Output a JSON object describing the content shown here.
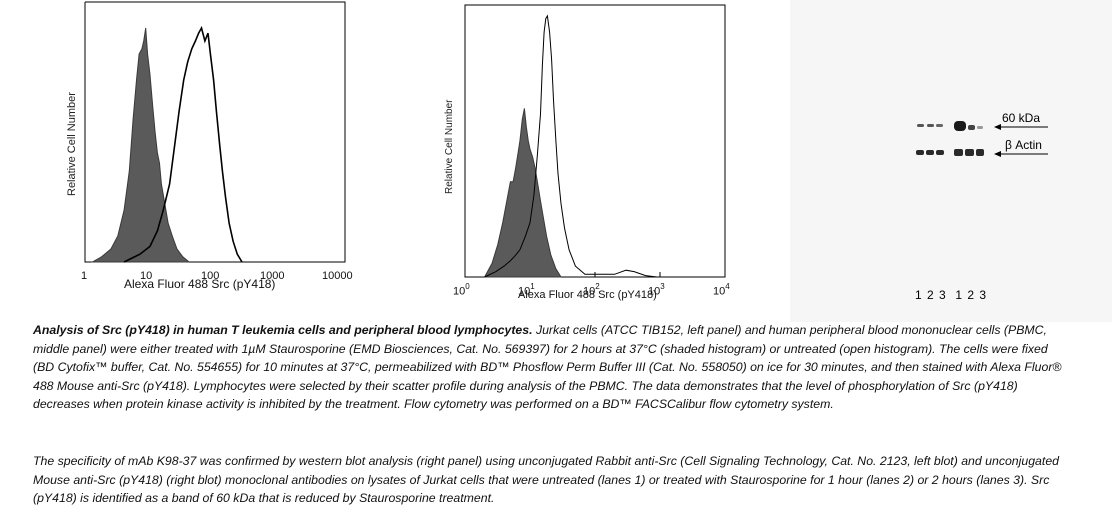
{
  "panels": [
    {
      "id": "jurkat",
      "ylabel": "Relative Cell Number",
      "xlabel": "Alexa Fluor 488 Src (pY418)",
      "xticks": [
        "1",
        "10",
        "100",
        "1000",
        "10000"
      ],
      "xscale": "log",
      "xlim": [
        1,
        10000
      ],
      "series": [
        {
          "style": "shaded",
          "points": [
            [
              1.3,
              0
            ],
            [
              1.8,
              0.02
            ],
            [
              2.5,
              0.05
            ],
            [
              3.2,
              0.1
            ],
            [
              4.0,
              0.2
            ],
            [
              4.8,
              0.35
            ],
            [
              5.5,
              0.55
            ],
            [
              6.2,
              0.7
            ],
            [
              6.8,
              0.8
            ],
            [
              7.5,
              0.82
            ],
            [
              8.0,
              0.85
            ],
            [
              8.6,
              0.9
            ],
            [
              9.2,
              0.8
            ],
            [
              10,
              0.72
            ],
            [
              11,
              0.6
            ],
            [
              12,
              0.5
            ],
            [
              13,
              0.42
            ],
            [
              14,
              0.38
            ],
            [
              15,
              0.3
            ],
            [
              17,
              0.22
            ],
            [
              19,
              0.15
            ],
            [
              22,
              0.1
            ],
            [
              26,
              0.05
            ],
            [
              32,
              0.02
            ],
            [
              40,
              0
            ]
          ]
        },
        {
          "style": "open",
          "points": [
            [
              4,
              0
            ],
            [
              7,
              0.03
            ],
            [
              10,
              0.06
            ],
            [
              13,
              0.12
            ],
            [
              16,
              0.2
            ],
            [
              20,
              0.3
            ],
            [
              24,
              0.45
            ],
            [
              28,
              0.58
            ],
            [
              33,
              0.7
            ],
            [
              38,
              0.77
            ],
            [
              44,
              0.82
            ],
            [
              50,
              0.85
            ],
            [
              56,
              0.88
            ],
            [
              62,
              0.9
            ],
            [
              70,
              0.85
            ],
            [
              78,
              0.88
            ],
            [
              85,
              0.8
            ],
            [
              95,
              0.7
            ],
            [
              105,
              0.58
            ],
            [
              118,
              0.45
            ],
            [
              130,
              0.35
            ],
            [
              145,
              0.25
            ],
            [
              165,
              0.15
            ],
            [
              190,
              0.08
            ],
            [
              220,
              0.03
            ],
            [
              260,
              0
            ]
          ]
        }
      ]
    },
    {
      "id": "pbmc",
      "ylabel": "Relative Cell Number",
      "xlabel": "Alexa Fluor 488 Src (pY418)",
      "xticks": [
        "10",
        "10",
        "10",
        "10",
        "10"
      ],
      "xtick_exps": [
        "0",
        "1",
        "2",
        "3",
        "4"
      ],
      "xscale": "log",
      "xlim": [
        1,
        10000
      ],
      "series": [
        {
          "style": "shaded",
          "points": [
            [
              2.0,
              0
            ],
            [
              2.6,
              0.05
            ],
            [
              3.2,
              0.12
            ],
            [
              3.8,
              0.2
            ],
            [
              4.4,
              0.28
            ],
            [
              5.0,
              0.35
            ],
            [
              5.5,
              0.35
            ],
            [
              6.0,
              0.4
            ],
            [
              6.5,
              0.45
            ],
            [
              7.0,
              0.5
            ],
            [
              7.6,
              0.58
            ],
            [
              8.2,
              0.62
            ],
            [
              8.8,
              0.55
            ],
            [
              9.4,
              0.5
            ],
            [
              10,
              0.47
            ],
            [
              11,
              0.44
            ],
            [
              12,
              0.4
            ],
            [
              13,
              0.35
            ],
            [
              14.5,
              0.28
            ],
            [
              16,
              0.22
            ],
            [
              18,
              0.15
            ],
            [
              21,
              0.08
            ],
            [
              25,
              0.03
            ],
            [
              30,
              0
            ]
          ]
        },
        {
          "style": "open",
          "points": [
            [
              2,
              0
            ],
            [
              3,
              0.02
            ],
            [
              4,
              0.04
            ],
            [
              5,
              0.06
            ],
            [
              6,
              0.08
            ],
            [
              7,
              0.1
            ],
            [
              8.5,
              0.15
            ],
            [
              10,
              0.2
            ],
            [
              11.5,
              0.3
            ],
            [
              13,
              0.45
            ],
            [
              14.5,
              0.6
            ],
            [
              15.5,
              0.78
            ],
            [
              16.5,
              0.9
            ],
            [
              17.5,
              0.95
            ],
            [
              18.5,
              0.96
            ],
            [
              20,
              0.9
            ],
            [
              21.5,
              0.8
            ],
            [
              23,
              0.65
            ],
            [
              25,
              0.5
            ],
            [
              27,
              0.38
            ],
            [
              30,
              0.27
            ],
            [
              34,
              0.18
            ],
            [
              40,
              0.1
            ],
            [
              50,
              0.04
            ],
            [
              70,
              0.01
            ],
            [
              200,
              0.01
            ],
            [
              300,
              0.025
            ],
            [
              400,
              0.02
            ],
            [
              600,
              0.005
            ],
            [
              900,
              0
            ]
          ]
        }
      ]
    }
  ],
  "western_blot": {
    "markers": [
      "60 kDa",
      "β Actin"
    ],
    "lanes": "1 2 3  1 2 3"
  },
  "caption": {
    "p1_title": "Analysis of Src (pY418) in human T leukemia cells and peripheral blood lymphocytes.",
    "p1_body": " Jurkat cells (ATCC TIB152, left panel) and human peripheral blood mononuclear cells (PBMC, middle panel) were either treated with 1µM Staurosporine (EMD Biosciences, Cat. No. 569397) for 2 hours at 37°C (shaded histogram) or untreated (open histogram).  The cells were fixed (BD Cytofix™ buffer, Cat. No. 554655) for 10 minutes at 37°C, permeabilized with BD™ Phosflow Perm Buffer III (Cat. No. 558050) on ice for 30 minutes, and then stained with Alexa Fluor® 488 Mouse anti-Src (pY418).  Lymphocytes were selected by their scatter profile during analysis of the PBMC.  The data demonstrates that the level of phosphorylation of Src (pY418) decreases when protein kinase activity is inhibited by the treatment.  Flow cytometry was performed on a BD™ FACSCalibur flow cytometry system.",
    "p2": "The specificity of mAb K98-37 was confirmed by western blot analysis (right panel) using unconjugated Rabbit anti-Src (Cell Signaling Technology, Cat. No. 2123, left blot) and unconjugated Mouse anti-Src (pY418) (right blot) monoclonal antibodies on lysates of Jurkat cells that were untreated (lanes 1) or treated with Staurosporine for 1 hour (lanes 2) or 2 hours (lanes 3).  Src (pY418) is identified as a band of 60 kDa that is reduced by Staurosporine treatment."
  }
}
